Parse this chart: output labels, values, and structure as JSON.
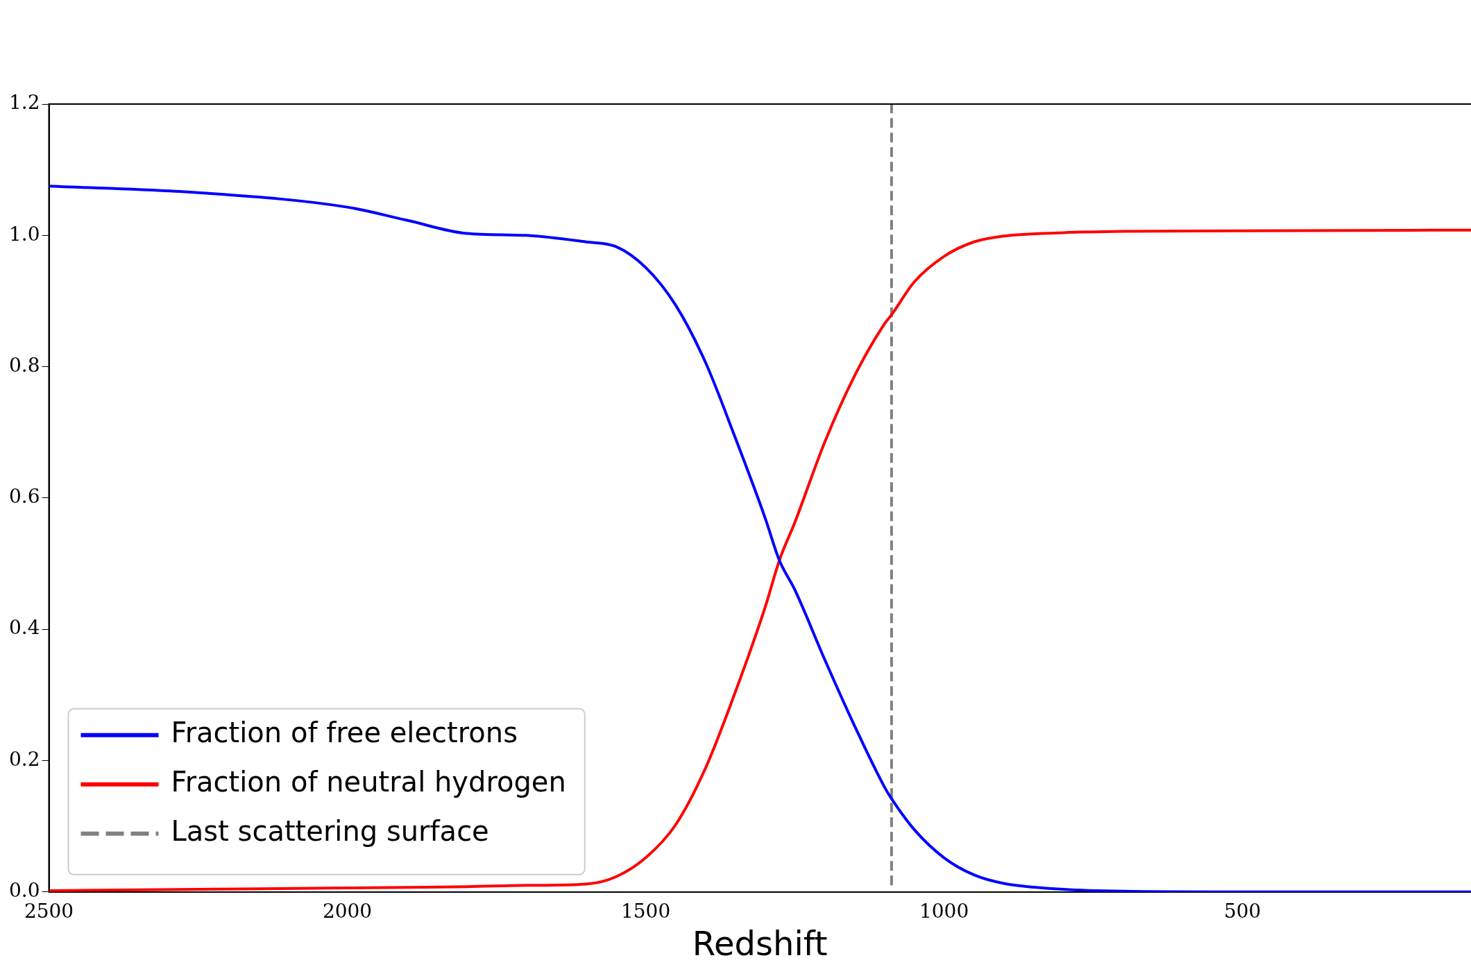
{
  "chart_data": {
    "type": "line",
    "xlabel": "Redshift",
    "xlim": [
      2500,
      117
    ],
    "xticks": [
      2500,
      2000,
      1500,
      1000,
      500
    ],
    "ylim": [
      0,
      1.2
    ],
    "yticks": [
      {
        "value": 0,
        "label": "0.0"
      },
      0.2,
      0.4,
      0.6,
      0.8,
      {
        "value": 1,
        "label": "1.0"
      },
      1.2
    ],
    "grid": false,
    "legend": "bottom left",
    "line_style": "solid",
    "marker": "none",
    "x": [
      2500,
      2250,
      2000,
      1900,
      1800,
      1700,
      1600,
      1550,
      1500,
      1450,
      1400,
      1350,
      1300,
      1276,
      1250,
      1200,
      1150,
      1100,
      1088,
      1050,
      1000,
      950,
      900,
      800,
      700,
      500,
      117
    ],
    "series": [
      {
        "name": "Fraction of free electrons",
        "color": "#0000ff",
        "values": [
          1.075,
          1.065,
          1.043,
          1.023,
          1.003,
          1.0,
          0.99,
          0.983,
          0.951,
          0.894,
          0.807,
          0.692,
          0.57,
          0.505,
          0.46,
          0.354,
          0.253,
          0.16,
          0.142,
          0.095,
          0.052,
          0.026,
          0.013,
          0.004,
          0.001,
          0.0,
          0.0
        ]
      },
      {
        "name": "Fraction of neutral hydrogen",
        "color": "#ff0000",
        "values": [
          0.002,
          0.004,
          0.006,
          0.007,
          0.008,
          0.01,
          0.012,
          0.023,
          0.052,
          0.102,
          0.188,
          0.304,
          0.433,
          0.505,
          0.563,
          0.685,
          0.786,
          0.865,
          0.879,
          0.929,
          0.968,
          0.99,
          0.999,
          1.004,
          1.006,
          1.007,
          1.008
        ]
      },
      {
        "name": "Last scattering surface",
        "color": "#808080",
        "line_style": "dashed",
        "x": [
          1088,
          1088
        ],
        "values": [
          0.01,
          1.2
        ]
      }
    ]
  }
}
